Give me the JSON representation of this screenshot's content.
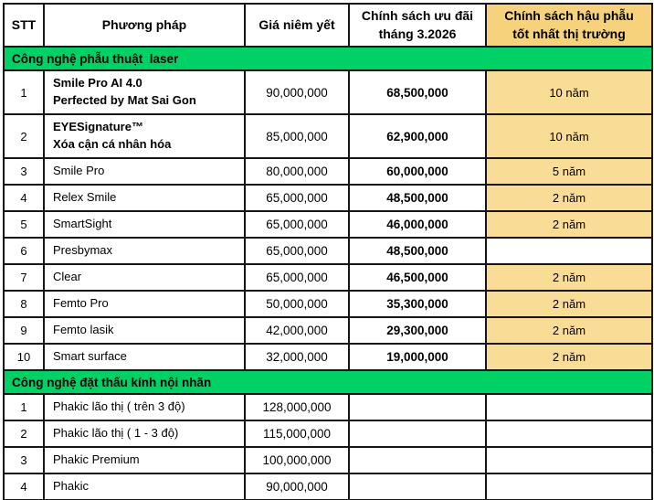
{
  "header": {
    "columns": [
      {
        "label": "STT",
        "highlight": false
      },
      {
        "label": "Phương pháp",
        "highlight": false
      },
      {
        "label": "Giá niêm yết",
        "highlight": false
      },
      {
        "label": "Chính sách ưu đãi\ntháng 3.2026",
        "highlight": false
      },
      {
        "label": "Chính sách hậu phẫu\ntốt nhất thị trường",
        "highlight": true
      }
    ]
  },
  "colors": {
    "section_green": "#00D166",
    "header_yellow": "#F5D27B",
    "warranty_yellow": "#F9DC96",
    "border_black": "#161616"
  },
  "sections": [
    {
      "title": "Công nghệ phẫu thuật  laser",
      "rows": [
        {
          "stt": "1",
          "method_lines": [
            "Smile Pro AI 4.0",
            "Perfected by Mat Sai Gon"
          ],
          "method_bold": true,
          "list_price": "90,000,000",
          "promo_price": "68,500,000",
          "warranty": "10 năm",
          "warranty_highlight": true
        },
        {
          "stt": "2",
          "method_lines": [
            "EYESignature™",
            "Xóa cận cá nhân hóa"
          ],
          "method_bold": true,
          "list_price": "85,000,000",
          "promo_price": "62,900,000",
          "warranty": "10 năm",
          "warranty_highlight": true
        },
        {
          "stt": "3",
          "method_lines": [
            "Smile Pro"
          ],
          "method_bold": false,
          "list_price": "80,000,000",
          "promo_price": "60,000,000",
          "warranty": "5 năm",
          "warranty_highlight": true
        },
        {
          "stt": "4",
          "method_lines": [
            "Relex Smile"
          ],
          "method_bold": false,
          "list_price": "65,000,000",
          "promo_price": "48,500,000",
          "warranty": "2 năm",
          "warranty_highlight": true
        },
        {
          "stt": "5",
          "method_lines": [
            "SmartSight"
          ],
          "method_bold": false,
          "list_price": "65,000,000",
          "promo_price": "46,000,000",
          "warranty": "2 năm",
          "warranty_highlight": true
        },
        {
          "stt": "6",
          "method_lines": [
            "Presbymax"
          ],
          "method_bold": false,
          "list_price": "65,000,000",
          "promo_price": "48,500,000",
          "warranty": "",
          "warranty_highlight": false
        },
        {
          "stt": "7",
          "method_lines": [
            "Clear"
          ],
          "method_bold": false,
          "list_price": "65,000,000",
          "promo_price": "46,500,000",
          "warranty": "2 năm",
          "warranty_highlight": true
        },
        {
          "stt": "8",
          "method_lines": [
            "Femto Pro"
          ],
          "method_bold": false,
          "list_price": "50,000,000",
          "promo_price": "35,300,000",
          "warranty": "2 năm",
          "warranty_highlight": true
        },
        {
          "stt": "9",
          "method_lines": [
            "Femto lasik"
          ],
          "method_bold": false,
          "list_price": "42,000,000",
          "promo_price": "29,300,000",
          "warranty": "2 năm",
          "warranty_highlight": true
        },
        {
          "stt": "10",
          "method_lines": [
            "Smart surface"
          ],
          "method_bold": false,
          "list_price": "32,000,000",
          "promo_price": "19,000,000",
          "warranty": "2 năm",
          "warranty_highlight": true
        }
      ]
    },
    {
      "title": "Công nghệ đặt thấu kính nội nhãn",
      "rows": [
        {
          "stt": "1",
          "method_lines": [
            "Phakic lão thị ( trên 3 độ)"
          ],
          "method_bold": false,
          "list_price": "128,000,000",
          "promo_price": "",
          "warranty": "",
          "warranty_highlight": false
        },
        {
          "stt": "2",
          "method_lines": [
            "Phakic lão thị ( 1 - 3 độ)"
          ],
          "method_bold": false,
          "list_price": "115,000,000",
          "promo_price": "",
          "warranty": "",
          "warranty_highlight": false
        },
        {
          "stt": "3",
          "method_lines": [
            "Phakic Premium"
          ],
          "method_bold": false,
          "list_price": "100,000,000",
          "promo_price": "",
          "warranty": "",
          "warranty_highlight": false
        },
        {
          "stt": "4",
          "method_lines": [
            "Phakic"
          ],
          "method_bold": false,
          "list_price": "90,000,000",
          "promo_price": "",
          "warranty": "",
          "warranty_highlight": false
        }
      ]
    }
  ]
}
